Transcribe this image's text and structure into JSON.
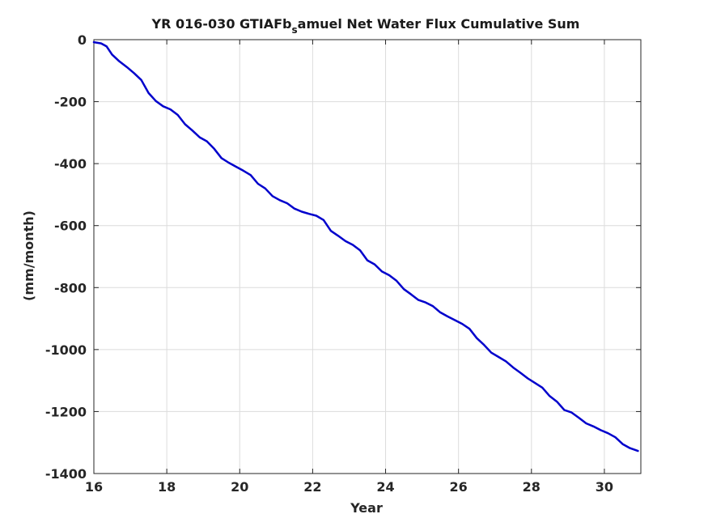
{
  "chart_data": {
    "type": "line",
    "title_main": "YR 016-030 GTIAFb",
    "title_sub": "s",
    "title_rest": "amuel Net Water Flux Cumulative Sum",
    "xlabel": "Year",
    "ylabel": "(mm/month)",
    "xlim": [
      16,
      31
    ],
    "ylim": [
      -1400,
      0
    ],
    "xticks": [
      16,
      18,
      20,
      22,
      24,
      26,
      28,
      30
    ],
    "yticks": [
      0,
      -200,
      -400,
      -600,
      -800,
      -1000,
      -1200,
      -1400
    ],
    "xtick_labels": [
      "16",
      "18",
      "20",
      "22",
      "24",
      "26",
      "28",
      "30"
    ],
    "ytick_labels": [
      "0",
      "-200",
      "-400",
      "-600",
      "-800",
      "-1000",
      "-1200",
      "-1400"
    ],
    "grid": true,
    "line_color": "#0000cc",
    "series": [
      {
        "x": [
          16.0,
          16.2,
          16.35,
          16.5,
          16.7,
          16.9,
          17.1,
          17.3,
          17.5,
          17.7,
          17.9,
          18.1,
          18.3,
          18.5,
          18.7,
          18.9,
          19.1,
          19.3,
          19.5,
          19.7,
          19.9,
          20.1,
          20.3,
          20.5,
          20.7,
          20.9,
          21.1,
          21.3,
          21.5,
          21.7,
          21.9,
          22.1,
          22.3,
          22.5,
          22.7,
          22.9,
          23.1,
          23.3,
          23.5,
          23.7,
          23.9,
          24.1,
          24.3,
          24.5,
          24.7,
          24.9,
          25.1,
          25.3,
          25.5,
          25.7,
          25.9,
          26.1,
          26.3,
          26.5,
          26.7,
          26.9,
          27.1,
          27.3,
          27.5,
          27.7,
          27.9,
          28.1,
          28.3,
          28.5,
          28.7,
          28.9,
          29.1,
          29.3,
          29.5,
          29.7,
          29.9,
          30.1,
          30.3,
          30.5,
          30.7,
          30.92
        ],
        "y": [
          -8,
          -12,
          -22,
          -48,
          -70,
          -88,
          -108,
          -130,
          -172,
          -198,
          -215,
          -225,
          -243,
          -273,
          -293,
          -315,
          -328,
          -352,
          -382,
          -397,
          -410,
          -423,
          -437,
          -465,
          -480,
          -505,
          -518,
          -528,
          -545,
          -555,
          -562,
          -568,
          -582,
          -617,
          -633,
          -650,
          -662,
          -680,
          -712,
          -725,
          -748,
          -760,
          -778,
          -805,
          -822,
          -840,
          -848,
          -860,
          -880,
          -893,
          -905,
          -917,
          -933,
          -963,
          -985,
          -1010,
          -1024,
          -1038,
          -1058,
          -1075,
          -1093,
          -1108,
          -1123,
          -1150,
          -1168,
          -1195,
          -1203,
          -1220,
          -1238,
          -1248,
          -1260,
          -1270,
          -1283,
          -1305,
          -1318,
          -1327
        ]
      }
    ]
  }
}
